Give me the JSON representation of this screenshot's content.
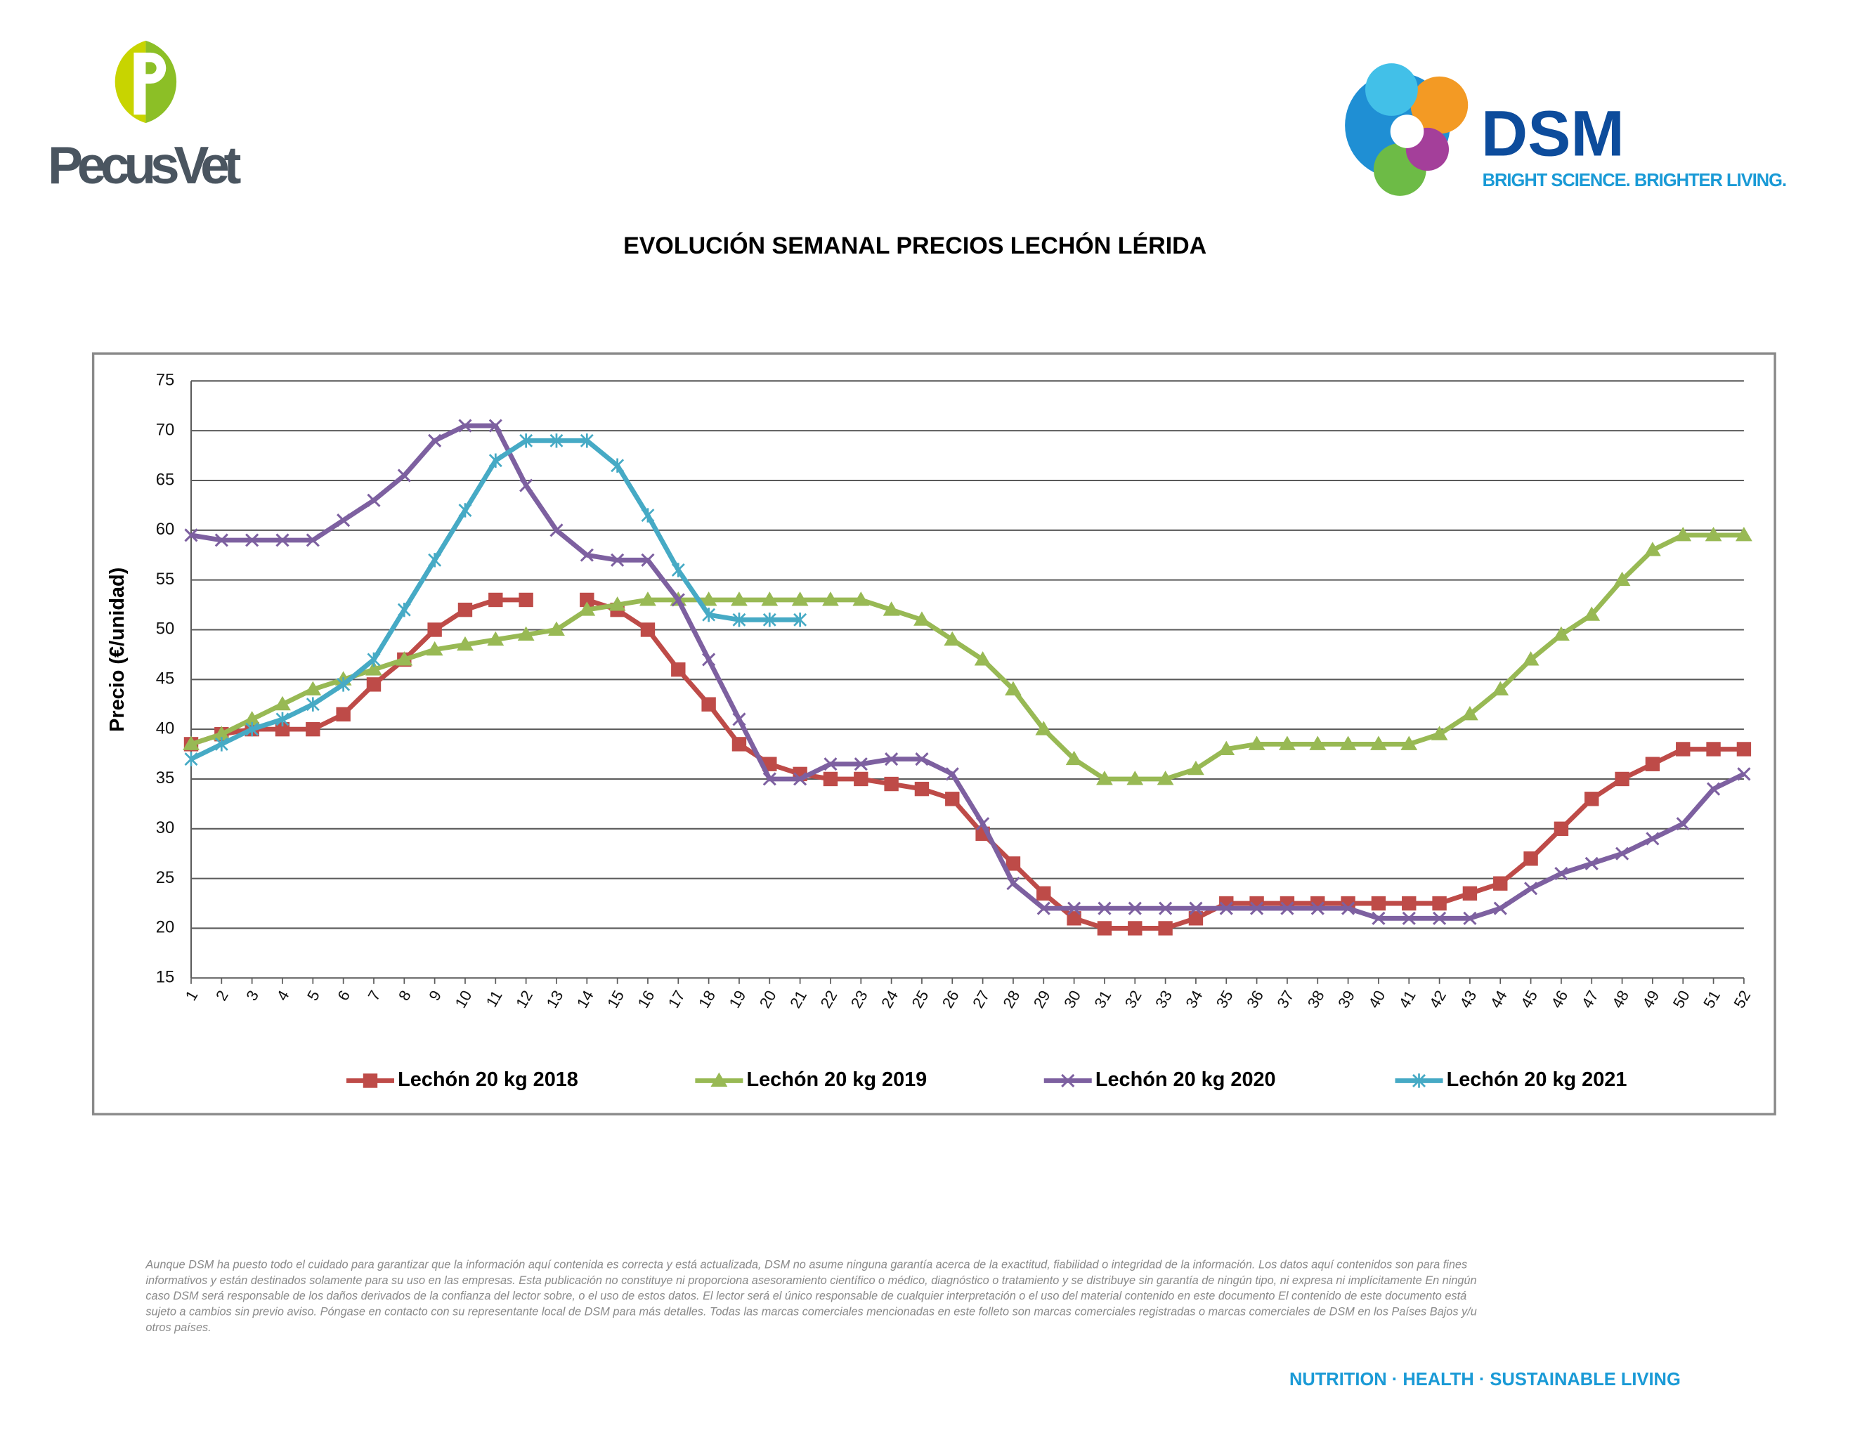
{
  "logos": {
    "left": "PecusVet",
    "right": "DSM",
    "tagline": "BRIGHT SCIENCE. BRIGHTER LIVING."
  },
  "disclaimer": [
    "Aunque DSM ha puesto todo el cuidado para garantizar que la información aquí contenida es correcta y está actualizada, DSM no asume ninguna garantía acerca de la exactitud, fiabilidad o integridad de la información. Los datos aquí contenidos son para fines",
    "informativos y están destinados solamente para su uso en las empresas. Esta publicación no constituye ni proporciona asesoramiento científico o médico, diagnóstico o tratamiento y se distribuye sin garantía de ningún tipo, ni expresa ni implícitamente En ningún",
    "caso DSM será responsable de los daños derivados de la confianza del lector sobre, o el uso de estos datos. El lector será el único responsable de cualquier interpretación o el uso del material contenido en este documento El contenido de este documento está",
    "sujeto a cambios sin previo aviso. Póngase en contacto con su representante local de DSM para más detalles. Todas las marcas comerciales mencionadas en este folleto son marcas comerciales registradas o marcas comerciales de DSM en los Países Bajos y/u",
    "otros países."
  ],
  "footer": "NUTRITION · HEALTH · SUSTAINABLE LIVING",
  "chart_data": {
    "type": "line",
    "title": "EVOLUCIÓN SEMANAL PRECIOS LECHÓN LÉRIDA",
    "y_label": "Precio (€/unidad)",
    "categories": [
      "1",
      "2",
      "3",
      "4",
      "5",
      "6",
      "7",
      "8",
      "9",
      "10",
      "11",
      "12",
      "13",
      "14",
      "15",
      "16",
      "17",
      "18",
      "19",
      "20",
      "21",
      "22",
      "23",
      "24",
      "25",
      "26",
      "27",
      "28",
      "29",
      "30",
      "31",
      "32",
      "33",
      "34",
      "35",
      "36",
      "37",
      "38",
      "39",
      "40",
      "41",
      "42",
      "43",
      "44",
      "45",
      "46",
      "47",
      "48",
      "49",
      "50",
      "51",
      "52"
    ],
    "ylim": [
      15,
      75
    ],
    "yticks": [
      15,
      20,
      25,
      30,
      35,
      40,
      45,
      50,
      55,
      60,
      65,
      70,
      75
    ],
    "grid": true,
    "legend": "bottom",
    "series": [
      {
        "name": "Lechón 20 kg 2018",
        "color": "#be4b48",
        "marker": "square",
        "values": [
          38.5,
          39.5,
          40,
          40,
          40,
          41.5,
          44.5,
          47,
          50,
          52,
          53,
          53,
          null,
          53,
          52,
          50,
          46,
          42.5,
          38.5,
          36.5,
          35.5,
          35,
          35,
          34.5,
          34,
          33,
          29.5,
          26.5,
          23.5,
          21,
          20,
          20,
          20,
          21,
          22.5,
          22.5,
          22.5,
          22.5,
          22.5,
          22.5,
          22.5,
          22.5,
          23.5,
          24.5,
          27,
          30,
          33,
          35,
          36.5,
          38,
          38,
          38
        ]
      },
      {
        "name": "Lechón 20 kg 2019",
        "color": "#98b954",
        "marker": "triangle",
        "values": [
          38.5,
          39.5,
          41,
          42.5,
          44,
          45,
          46,
          47,
          48,
          48.5,
          49,
          49.5,
          50,
          52,
          52.5,
          53,
          53,
          53,
          53,
          53,
          53,
          53,
          53,
          52,
          51,
          49,
          47,
          44,
          40,
          37,
          35,
          35,
          35,
          36,
          38,
          38.5,
          38.5,
          38.5,
          38.5,
          38.5,
          38.5,
          39.5,
          41.5,
          44,
          47,
          49.5,
          51.5,
          55,
          58,
          59.5,
          59.5,
          59.5
        ]
      },
      {
        "name": "Lechón 20 kg 2020",
        "color": "#7d60a0",
        "marker": "x",
        "values": [
          59.5,
          59,
          59,
          59,
          59,
          61,
          63,
          65.5,
          69,
          70.5,
          70.5,
          64.5,
          60,
          57.5,
          57,
          57,
          53,
          47,
          41,
          35,
          35,
          36.5,
          36.5,
          37,
          37,
          35.5,
          30.5,
          24.5,
          22,
          22,
          22,
          22,
          22,
          22,
          22,
          22,
          22,
          22,
          22,
          21,
          21,
          21,
          21,
          22,
          24,
          25.5,
          26.5,
          27.5,
          29,
          30.5,
          34,
          35.5
        ]
      },
      {
        "name": "Lechón 20 kg 2021",
        "color": "#46aac5",
        "marker": "star",
        "values": [
          37,
          38.5,
          40,
          41,
          42.5,
          44.5,
          47,
          52,
          57,
          62,
          67,
          69,
          69,
          69,
          66.5,
          61.5,
          56,
          51.5,
          51,
          51,
          51,
          null,
          null,
          null,
          null,
          null,
          null,
          null,
          null,
          null,
          null,
          null,
          null,
          null,
          null,
          null,
          null,
          null,
          null,
          null,
          null,
          null,
          null,
          null,
          null,
          null,
          null,
          null,
          null,
          null,
          null,
          null
        ]
      }
    ]
  }
}
